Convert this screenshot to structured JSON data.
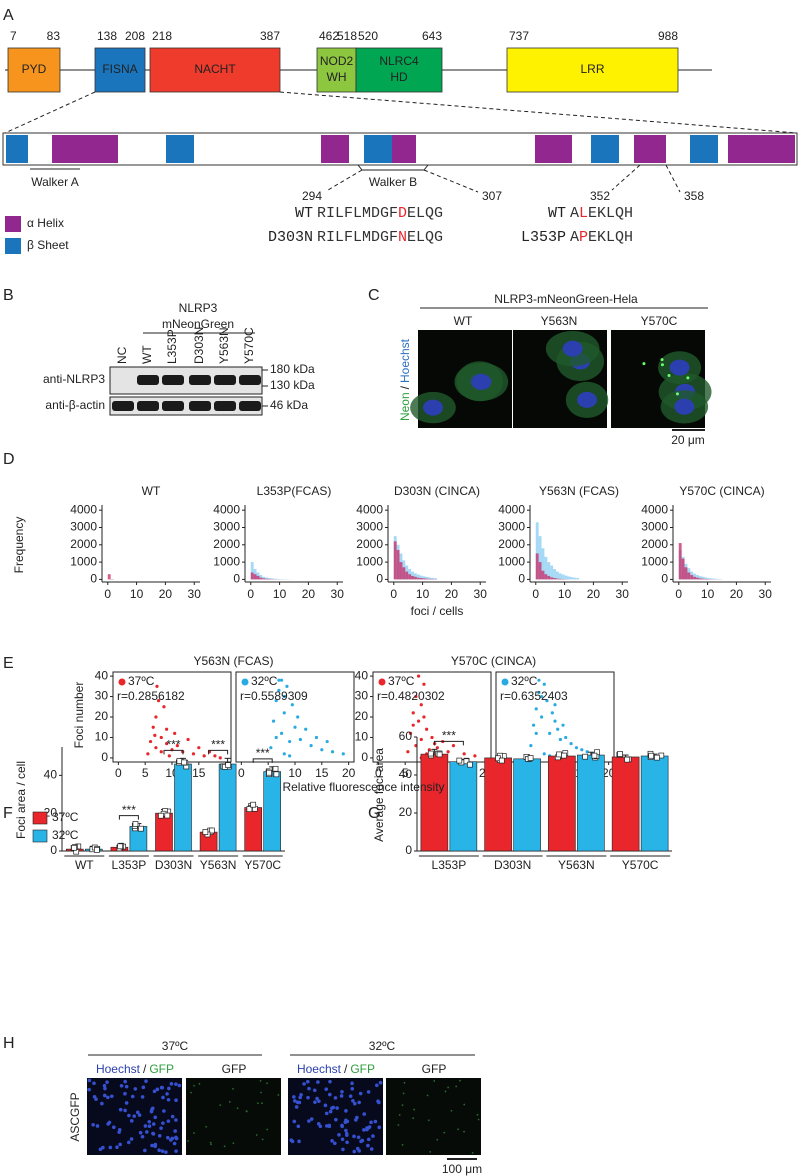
{
  "letters": [
    "A",
    "B",
    "C",
    "D",
    "E",
    "F",
    "G",
    "H"
  ],
  "panel_a": {
    "domains": [
      {
        "name": [
          "PYD"
        ],
        "start": 7,
        "end": 83
      },
      {
        "name": [
          "FISNA"
        ],
        "start": 138,
        "end": 208
      },
      {
        "name": [
          "NACHT"
        ],
        "start": 218,
        "end": 387
      },
      {
        "name": [
          "NOD2",
          "WH"
        ],
        "start": 462,
        "end": 518
      },
      {
        "name": [
          "NLRC4",
          "HD"
        ],
        "start": 520,
        "end": 643
      },
      {
        "name": [
          "LRR"
        ],
        "start": 737,
        "end": 988
      }
    ],
    "walker_a": "Walker A",
    "walker_b": "Walker B",
    "motif1": {
      "start": 294,
      "end": 307,
      "rows": [
        {
          "label": "WT",
          "seq": [
            "RILFLMDGF",
            "D",
            "ELQG"
          ]
        },
        {
          "label": "D303N",
          "seq": [
            "RILFLMDGF",
            "N",
            "ELQG"
          ]
        }
      ]
    },
    "motif2": {
      "start": 352,
      "end": 358,
      "rows": [
        {
          "label": "WT",
          "seq": [
            "A",
            "L",
            "EKLQH"
          ]
        },
        {
          "label": "L353P",
          "seq": [
            "A",
            "P",
            "EKLQH"
          ]
        }
      ]
    },
    "legend": [
      "α Helix",
      "β Sheet"
    ]
  },
  "panel_b": {
    "header": [
      "NLRP3",
      "mNeonGreen"
    ],
    "lanes": [
      "NC",
      "WT",
      "L353P",
      "D303N",
      "Y563N",
      "Y570C"
    ],
    "rows": [
      "anti-NLRP3",
      "anti-β-actin"
    ],
    "markers": [
      "180 kDa",
      "130 kDa",
      "46 kDa"
    ]
  },
  "panel_c": {
    "title": "NLRP3-mNeonGreen-Hela",
    "columns": [
      "WT",
      "Y563N",
      "Y570C"
    ],
    "side": [
      "Neon",
      "/",
      "Hoechst"
    ],
    "scale": "20 μm"
  },
  "panel_d": {
    "ylabel": "Frequency",
    "xlabel": "foci / cells"
  },
  "panel_e": {
    "groups": [
      "Y563N (FCAS)",
      "Y570C (CINCA)"
    ],
    "ylabel": "Foci number",
    "xlabel": "Relative fluorescence intensity"
  },
  "panel_h": {
    "columns": [
      "37ºC",
      "32ºC"
    ],
    "sublabels": [
      "Hoechst",
      "/",
      "GFP",
      "GFP"
    ],
    "side": "ASCGFP",
    "scale": "100 μm"
  },
  "chart_data": [
    {
      "type": "histogram",
      "title": "WT",
      "bins": [
        0,
        1,
        2,
        3,
        4,
        5,
        6,
        7,
        8,
        9,
        10,
        11,
        12,
        13,
        14,
        15
      ],
      "series": [
        {
          "color": "#c8336e",
          "values": [
            300,
            20,
            0,
            0,
            0,
            0,
            0,
            0,
            0,
            0,
            0,
            0,
            0,
            0,
            0
          ]
        }
      ],
      "xlim": [
        -2,
        32
      ],
      "ylim": [
        -150,
        4300
      ],
      "xticks": [
        0,
        10,
        20,
        30
      ],
      "yticks": [
        0,
        1000,
        2000,
        3000,
        4000
      ]
    },
    {
      "type": "histogram",
      "title": "L353P(FCAS)",
      "bins": [
        0,
        1,
        2,
        3,
        4,
        5,
        6,
        7,
        8,
        9,
        10,
        11,
        12,
        13,
        14,
        15
      ],
      "series": [
        {
          "color": "#8fd0f2",
          "values": [
            1000,
            600,
            400,
            250,
            150,
            100,
            80,
            60,
            40,
            30,
            20,
            15,
            10,
            8,
            5
          ]
        },
        {
          "color": "#c8336e",
          "values": [
            400,
            300,
            200,
            100,
            60,
            40,
            25,
            15,
            10,
            5,
            3,
            2,
            1,
            0,
            0
          ]
        }
      ],
      "xlim": [
        -2,
        32
      ],
      "ylim": [
        -150,
        4300
      ],
      "xticks": [
        0,
        10,
        20,
        30
      ],
      "yticks": [
        0,
        1000,
        2000,
        3000,
        4000
      ]
    },
    {
      "type": "histogram",
      "title": "D303N (CINCA)",
      "bins": [
        0,
        1,
        2,
        3,
        4,
        5,
        6,
        7,
        8,
        9,
        10,
        11,
        12,
        13,
        14,
        15
      ],
      "series": [
        {
          "color": "#8fd0f2",
          "values": [
            2500,
            2000,
            1500,
            1100,
            800,
            600,
            450,
            350,
            280,
            220,
            180,
            140,
            110,
            90,
            70
          ]
        },
        {
          "color": "#c8336e",
          "values": [
            2200,
            1700,
            1000,
            700,
            450,
            300,
            200,
            150,
            100,
            80,
            60,
            40,
            30,
            20,
            15
          ]
        }
      ],
      "xlim": [
        -2,
        32
      ],
      "ylim": [
        -150,
        4300
      ],
      "xticks": [
        0,
        10,
        20,
        30
      ],
      "yticks": [
        0,
        1000,
        2000,
        3000,
        4000
      ]
    },
    {
      "type": "histogram",
      "title": "Y563N (FCAS)",
      "bins": [
        0,
        1,
        2,
        3,
        4,
        5,
        6,
        7,
        8,
        9,
        10,
        11,
        12,
        13,
        14,
        15
      ],
      "series": [
        {
          "color": "#8fd0f2",
          "values": [
            3300,
            2500,
            1800,
            1300,
            1000,
            800,
            600,
            450,
            350,
            280,
            220,
            170,
            130,
            100,
            80
          ]
        },
        {
          "color": "#c8336e",
          "values": [
            1500,
            1000,
            500,
            300,
            200,
            120,
            80,
            50,
            30,
            20,
            10,
            5,
            3,
            2,
            1
          ]
        }
      ],
      "xlim": [
        -2,
        32
      ],
      "ylim": [
        -150,
        4300
      ],
      "xticks": [
        0,
        10,
        20,
        30
      ],
      "yticks": [
        0,
        1000,
        2000,
        3000,
        4000
      ]
    },
    {
      "type": "histogram",
      "title": "Y570C (CINCA)",
      "bins": [
        0,
        1,
        2,
        3,
        4,
        5,
        6,
        7,
        8,
        9,
        10,
        11,
        12,
        13,
        14,
        15
      ],
      "series": [
        {
          "color": "#8fd0f2",
          "values": [
            1700,
            1300,
            900,
            650,
            450,
            330,
            250,
            190,
            150,
            110,
            80,
            60,
            45,
            30,
            20
          ]
        },
        {
          "color": "#c8336e",
          "values": [
            2100,
            1200,
            700,
            400,
            250,
            150,
            100,
            60,
            40,
            25,
            15,
            10,
            5,
            3,
            2
          ]
        }
      ],
      "xlim": [
        -2,
        32
      ],
      "ylim": [
        -150,
        4300
      ],
      "xticks": [
        0,
        10,
        20,
        30
      ],
      "yticks": [
        0,
        1000,
        2000,
        3000,
        4000
      ]
    },
    {
      "type": "scatter",
      "series": [
        {
          "name": "37ºC",
          "color": "#e8262b",
          "x": [
            5.5,
            6,
            6.5,
            7,
            7,
            7.5,
            8,
            8,
            8.5,
            9,
            9,
            9.5,
            10,
            10.5,
            11,
            12,
            13,
            14,
            15,
            16,
            17,
            18,
            19,
            7.2,
            6.8
          ],
          "y": [
            2,
            8,
            15,
            5,
            20,
            28,
            10,
            3,
            25,
            7,
            14,
            1,
            4,
            12,
            6,
            3,
            9,
            2,
            5,
            1,
            3,
            1,
            0,
            35,
            11
          ]
        }
      ],
      "annotation": "r=0.2856182",
      "xlim": [
        -1,
        21
      ],
      "ylim": [
        -2,
        42
      ],
      "xticks": [
        0,
        5,
        10,
        15,
        20
      ],
      "yticks": [
        0,
        10,
        20,
        30,
        40
      ]
    },
    {
      "type": "scatter",
      "series": [
        {
          "name": "32ºC",
          "color": "#29abe2",
          "x": [
            5.5,
            6,
            6.5,
            7,
            7.5,
            8,
            8,
            8.5,
            9,
            9.5,
            10,
            10.5,
            11,
            12,
            13,
            14,
            15,
            16,
            17,
            19,
            7,
            8,
            9,
            6.5,
            7.5
          ],
          "y": [
            5,
            18,
            28,
            38,
            12,
            30,
            22,
            35,
            8,
            26,
            15,
            20,
            9,
            14,
            6,
            10,
            4,
            8,
            3,
            2,
            33,
            2,
            1,
            10,
            38
          ]
        }
      ],
      "annotation": "r=0.5589309",
      "xlim": [
        -1,
        21
      ],
      "ylim": [
        -2,
        42
      ],
      "xticks": [
        0,
        5,
        10,
        15,
        20
      ]
    },
    {
      "type": "scatter",
      "series": [
        {
          "name": "37ºC",
          "color": "#e8262b",
          "x": [
            5.5,
            6,
            6.5,
            7,
            7,
            7.5,
            8,
            8,
            8.5,
            9,
            9.5,
            10,
            10.5,
            11,
            12,
            13,
            14,
            16,
            18,
            7.5,
            8.5,
            6.5,
            9,
            10,
            8
          ],
          "y": [
            3,
            12,
            22,
            6,
            30,
            18,
            26,
            9,
            36,
            14,
            4,
            10,
            7,
            5,
            8,
            3,
            6,
            2,
            1,
            40,
            20,
            16,
            2,
            1,
            0
          ]
        }
      ],
      "annotation": "r=0.4820302",
      "xlim": [
        -1,
        21
      ],
      "ylim": [
        -2,
        42
      ],
      "xticks": [
        0,
        5,
        10,
        15,
        20
      ],
      "yticks": [
        0,
        10,
        20,
        30,
        40
      ]
    },
    {
      "type": "scatter",
      "series": [
        {
          "name": "32ºC",
          "color": "#29abe2",
          "x": [
            5.5,
            6,
            6.5,
            7,
            7.5,
            8,
            8.5,
            9,
            9.5,
            10,
            10.5,
            11,
            12,
            13,
            14,
            15,
            16,
            17,
            7,
            8,
            9,
            6.5,
            7.5,
            10,
            11.5
          ],
          "y": [
            6,
            16,
            24,
            32,
            20,
            36,
            28,
            12,
            22,
            18,
            14,
            9,
            10,
            7,
            5,
            4,
            3,
            2,
            38,
            2,
            1,
            12,
            30,
            26,
            16
          ]
        }
      ],
      "annotation": "r=0.6352403",
      "xlim": [
        -1,
        21
      ],
      "ylim": [
        -2,
        42
      ],
      "xticks": [
        0,
        5,
        10,
        15,
        20
      ]
    },
    {
      "type": "bar",
      "ylabel": "Foci area / cell",
      "categories": [
        "WT",
        "L353P",
        "D303N",
        "Y563N",
        "Y570C"
      ],
      "series": [
        {
          "name": "37ºC",
          "color": "#e8262b",
          "values": [
            1,
            2,
            20,
            10,
            23
          ],
          "errors": [
            0.5,
            1,
            2,
            1,
            1.5
          ]
        },
        {
          "name": "32ºC",
          "color": "#29b4e8",
          "values": [
            1,
            13,
            46,
            46,
            42
          ],
          "errors": [
            0.5,
            1.5,
            3,
            3,
            2.5
          ]
        }
      ],
      "significance": [
        null,
        "***",
        "***",
        "***",
        "***"
      ],
      "ylim": [
        0,
        55
      ],
      "yticks": [
        0,
        20,
        40
      ],
      "legend": "top-left"
    },
    {
      "type": "bar",
      "ylabel": "Average foci area",
      "categories": [
        "L353P",
        "D303N",
        "Y563N",
        "Y570C"
      ],
      "series": [
        {
          "color": "#e8262b",
          "values": [
            51,
            49,
            50,
            49.5
          ],
          "errors": [
            2.5,
            1,
            1.5,
            1
          ]
        },
        {
          "color": "#29b4e8",
          "values": [
            47,
            48.5,
            50.5,
            50
          ],
          "errors": [
            1.2,
            1,
            1.5,
            1
          ]
        }
      ],
      "significance": [
        "***",
        null,
        null,
        null
      ],
      "ylim": [
        0,
        60
      ],
      "yticks": [
        0,
        20,
        40,
        60
      ]
    }
  ]
}
